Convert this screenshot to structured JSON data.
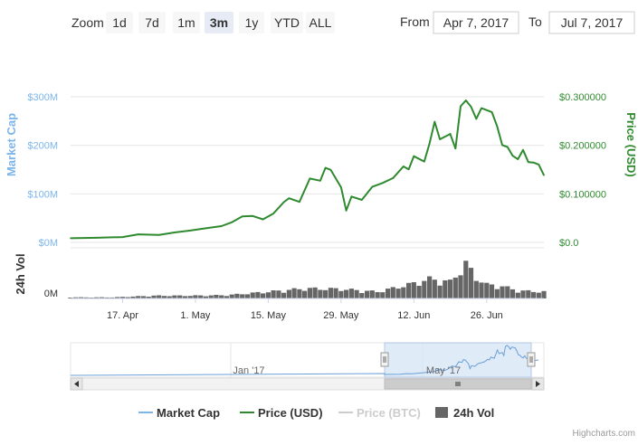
{
  "range_selector": {
    "zoom_label": "Zoom",
    "buttons": [
      "1d",
      "7d",
      "1m",
      "3m",
      "1y",
      "YTD",
      "ALL"
    ],
    "selected": "3m",
    "from_label": "From",
    "from_value": "Apr 7, 2017",
    "to_label": "To",
    "to_value": "Jul 7, 2017"
  },
  "axes": {
    "left_title": "Market Cap",
    "right_title": "Price (USD)",
    "vol_title": "24h Vol",
    "left_ticks": [
      "$0M",
      "$100M",
      "$200M",
      "$300M"
    ],
    "right_ticks": [
      "$0.0",
      "$0.100000",
      "$0.200000",
      "$0.300000"
    ],
    "vol_ticks": [
      "0M"
    ],
    "x_ticks": [
      "17. Apr",
      "1. May",
      "15. May",
      "29. May",
      "12. Jun",
      "26. Jun"
    ]
  },
  "navigator": {
    "labels": [
      "Jan '17",
      "May '17"
    ]
  },
  "legend": {
    "items": [
      {
        "label": "Market Cap",
        "color": "#7cb5ec",
        "type": "line",
        "hidden": false
      },
      {
        "label": "Price (USD)",
        "color": "#2f8a2f",
        "type": "line",
        "hidden": false
      },
      {
        "label": "Price (BTC)",
        "color": "#cccccc",
        "type": "line",
        "hidden": true
      },
      {
        "label": "24h Vol",
        "color": "#666666",
        "type": "bar",
        "hidden": false
      }
    ]
  },
  "credits": "Highcharts.com",
  "colors": {
    "market_cap": "#7cb5ec",
    "price_usd": "#2f8a2f",
    "volume": "#666666",
    "navigator_fill": "#d6e4f6",
    "selected_button": "#e6ebf5"
  },
  "chart_data": {
    "type": "line",
    "x_range": [
      "2017-04-07",
      "2017-07-07"
    ],
    "ylim_price_usd": [
      0,
      0.3
    ],
    "ylim_market_cap": [
      0,
      300
    ],
    "grid": true,
    "legend_position": "bottom",
    "series": [
      {
        "name": "Price (USD)",
        "axis": "right",
        "points": [
          [
            "2017-04-07",
            0.0085
          ],
          [
            "2017-04-12",
            0.0095
          ],
          [
            "2017-04-17",
            0.011
          ],
          [
            "2017-04-20",
            0.0165
          ],
          [
            "2017-04-24",
            0.0155
          ],
          [
            "2017-04-27",
            0.0205
          ],
          [
            "2017-04-30",
            0.0245
          ],
          [
            "2017-05-03",
            0.029
          ],
          [
            "2017-05-06",
            0.0335
          ],
          [
            "2017-05-08",
            0.0415
          ],
          [
            "2017-05-10",
            0.0535
          ],
          [
            "2017-05-12",
            0.0545
          ],
          [
            "2017-05-14",
            0.0475
          ],
          [
            "2017-05-16",
            0.0595
          ],
          [
            "2017-05-18",
            0.083
          ],
          [
            "2017-05-19",
            0.091
          ],
          [
            "2017-05-21",
            0.0835
          ],
          [
            "2017-05-23",
            0.1315
          ],
          [
            "2017-05-25",
            0.127
          ],
          [
            "2017-05-26",
            0.1535
          ],
          [
            "2017-05-27",
            0.1495
          ],
          [
            "2017-05-29",
            0.1135
          ],
          [
            "2017-05-30",
            0.0655
          ],
          [
            "2017-05-31",
            0.0945
          ],
          [
            "2017-06-02",
            0.0875
          ],
          [
            "2017-06-04",
            0.1145
          ],
          [
            "2017-06-06",
            0.1225
          ],
          [
            "2017-06-08",
            0.1325
          ],
          [
            "2017-06-10",
            0.1565
          ],
          [
            "2017-06-11",
            0.1505
          ],
          [
            "2017-06-12",
            0.1775
          ],
          [
            "2017-06-14",
            0.1665
          ],
          [
            "2017-06-15",
            0.2035
          ],
          [
            "2017-06-16",
            0.2485
          ],
          [
            "2017-06-17",
            0.2125
          ],
          [
            "2017-06-19",
            0.2235
          ],
          [
            "2017-06-20",
            0.1935
          ],
          [
            "2017-06-21",
            0.2805
          ],
          [
            "2017-06-22",
            0.2925
          ],
          [
            "2017-06-23",
            0.2795
          ],
          [
            "2017-06-24",
            0.2545
          ],
          [
            "2017-06-25",
            0.2765
          ],
          [
            "2017-06-27",
            0.2685
          ],
          [
            "2017-06-28",
            0.2395
          ],
          [
            "2017-06-29",
            0.2005
          ],
          [
            "2017-06-30",
            0.1965
          ],
          [
            "2017-07-01",
            0.1785
          ],
          [
            "2017-07-02",
            0.1715
          ],
          [
            "2017-07-03",
            0.1905
          ],
          [
            "2017-07-04",
            0.1655
          ],
          [
            "2017-07-05",
            0.1645
          ],
          [
            "2017-07-06",
            0.1605
          ],
          [
            "2017-07-07",
            0.1385
          ]
        ]
      },
      {
        "name": "24h Vol",
        "axis": "volume",
        "points": [
          [
            "2017-04-07",
            0.02
          ],
          [
            "2017-04-15",
            0.02
          ],
          [
            "2017-04-23",
            0.05
          ],
          [
            "2017-04-30",
            0.05
          ],
          [
            "2017-05-07",
            0.06
          ],
          [
            "2017-05-15",
            0.12
          ],
          [
            "2017-05-22",
            0.18
          ],
          [
            "2017-05-29",
            0.17
          ],
          [
            "2017-06-05",
            0.12
          ],
          [
            "2017-06-11",
            0.25
          ],
          [
            "2017-06-15",
            0.35
          ],
          [
            "2017-06-19",
            0.3
          ],
          [
            "2017-06-22",
            0.62
          ],
          [
            "2017-06-24",
            0.38
          ],
          [
            "2017-06-26",
            0.25
          ],
          [
            "2017-06-29",
            0.22
          ],
          [
            "2017-07-02",
            0.14
          ],
          [
            "2017-07-07",
            0.12
          ]
        ]
      }
    ]
  }
}
